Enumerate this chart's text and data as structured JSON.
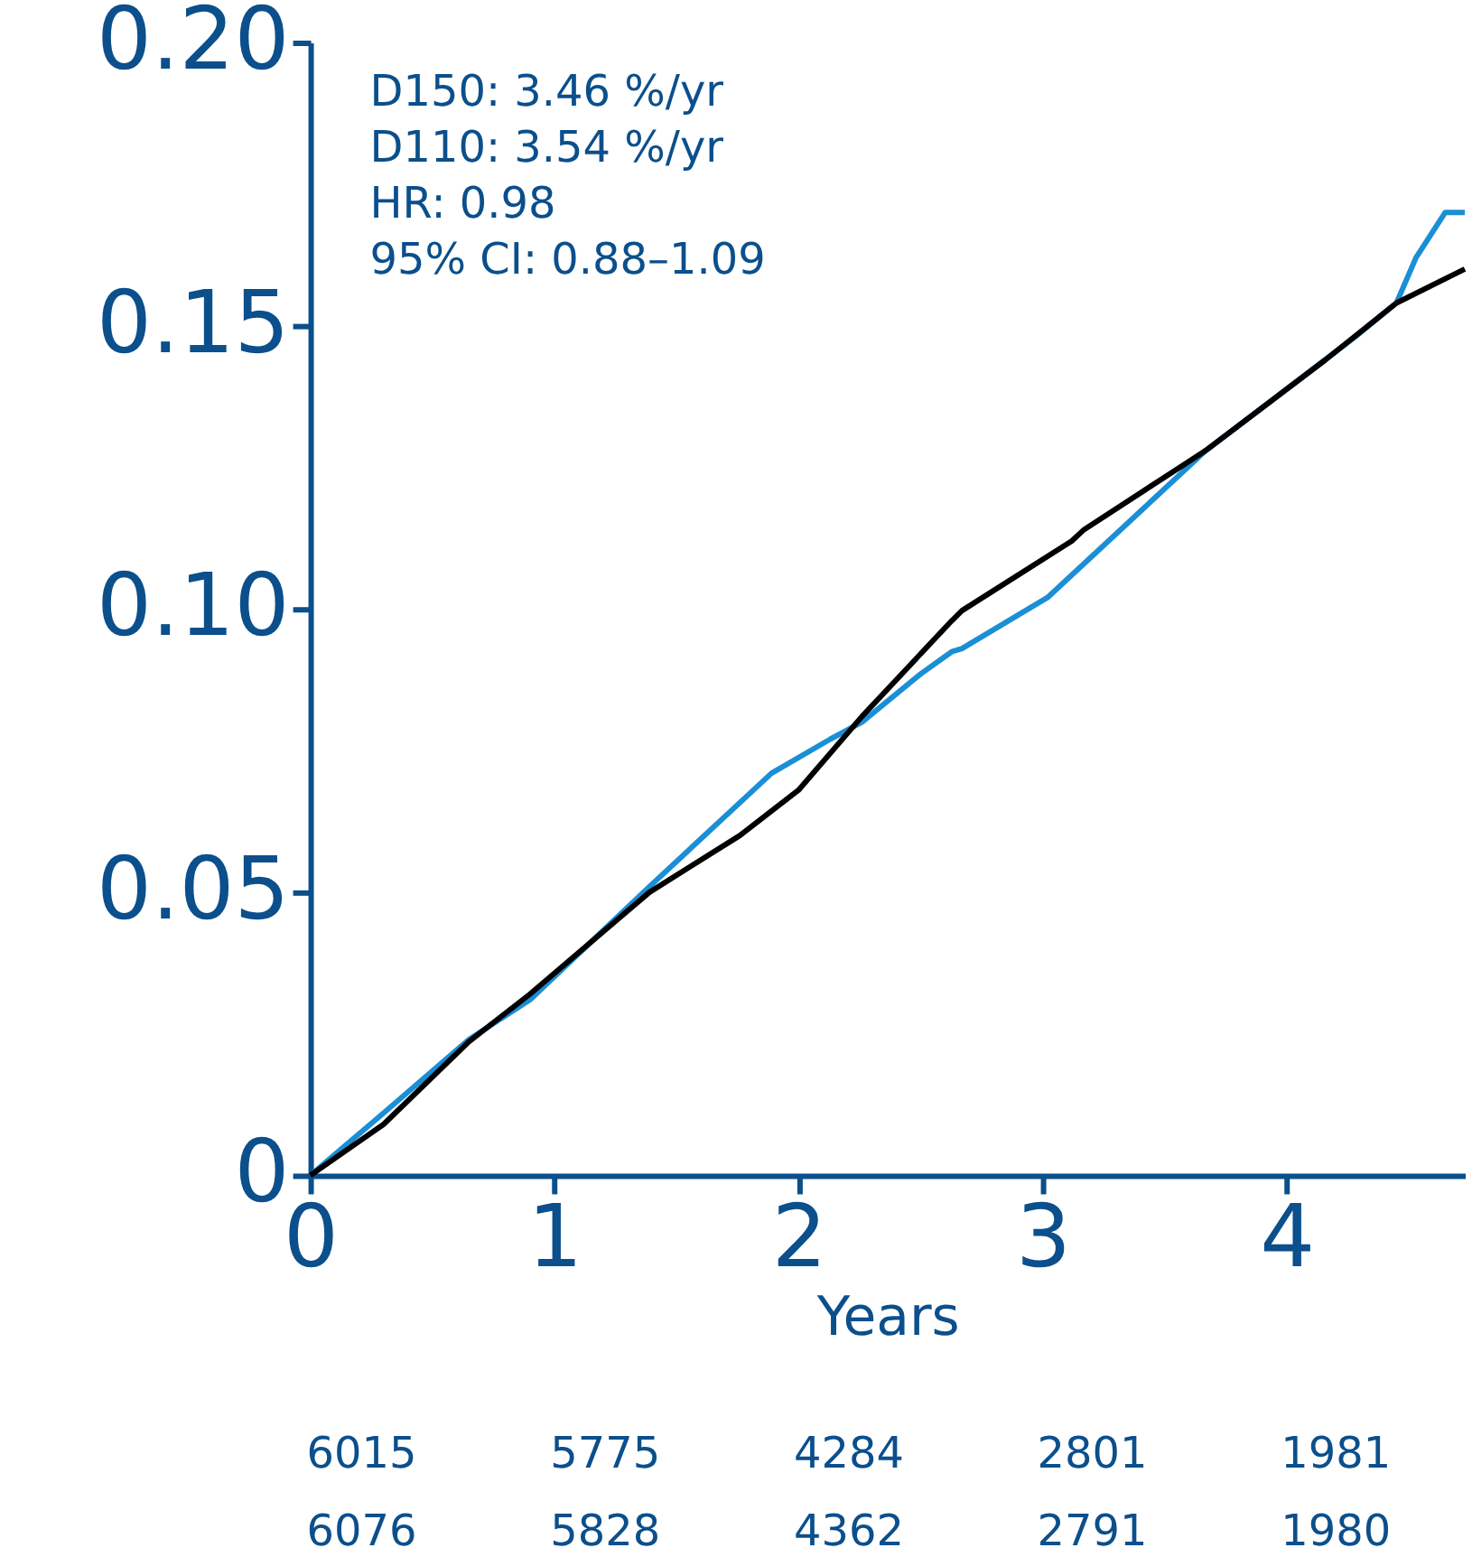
{
  "chart_data": {
    "type": "line",
    "xlabel": "Years",
    "xlim": [
      0,
      4.73
    ],
    "xticks": [
      0,
      1,
      2,
      3,
      4
    ],
    "ylim": [
      0,
      0.2
    ],
    "yticks": [
      {
        "value": 0,
        "label": "0"
      },
      0.05,
      {
        "value": 0.1,
        "label": "0.10"
      },
      0.15,
      {
        "value": 0.2,
        "label": "0.20"
      }
    ],
    "grid": false,
    "marker": "none",
    "line_style": "solid",
    "series": [
      {
        "color": "#1a8fd6",
        "x": [
          0,
          0.3,
          0.65,
          0.9,
          1.39,
          1.89,
          2.13,
          2.26,
          2.5,
          2.63,
          2.67,
          3.02,
          3.67,
          4.28,
          4.45,
          4.53,
          4.65,
          4.73
        ],
        "values": [
          0,
          0.011,
          0.024,
          0.031,
          0.051,
          0.071,
          0.077,
          0.08,
          0.0885,
          0.0925,
          0.093,
          0.102,
          0.128,
          0.148,
          0.154,
          0.162,
          0.17,
          0.17
        ]
      },
      {
        "color": "#000000",
        "x": [
          0,
          0.3,
          0.65,
          0.9,
          1.39,
          1.76,
          2.0,
          2.26,
          2.63,
          2.67,
          3.12,
          3.17,
          3.67,
          4.16,
          4.45,
          4.73
        ],
        "values": [
          0,
          0.009,
          0.0236,
          0.032,
          0.05,
          0.06,
          0.068,
          0.081,
          0.098,
          0.0997,
          0.112,
          0.114,
          0.128,
          0.144,
          0.154,
          0.16
        ]
      }
    ],
    "annotations": [
      "D150: 3.46 %/yr",
      "D110: 3.54 %/yr",
      "HR: 0.98",
      "95% CI: 0.88–1.09",
      "6015",
      "5775",
      "4284",
      "2801",
      "1981",
      "6076",
      "5828",
      "4362",
      "2791",
      "1980"
    ]
  }
}
